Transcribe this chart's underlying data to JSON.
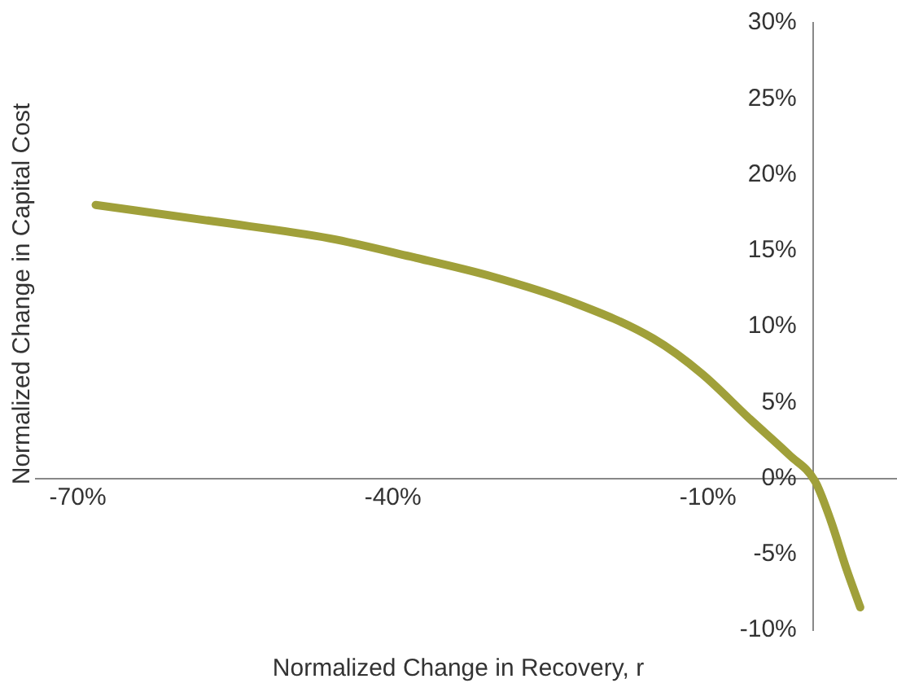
{
  "chart_data": {
    "type": "line",
    "xlabel": "Normalized Change in Recovery, r",
    "ylabel": "Normalized Change in Capital Cost",
    "xlim": [
      -74,
      8
    ],
    "ylim": [
      -10,
      30
    ],
    "xticks": [
      {
        "value": -70,
        "label": "-70%"
      },
      {
        "value": -40,
        "label": "-40%"
      },
      {
        "value": -10,
        "label": "-10%"
      }
    ],
    "yticks": [
      {
        "value": -10,
        "label": "-10%"
      },
      {
        "value": -5,
        "label": "-5%"
      },
      {
        "value": 0,
        "label": "0%"
      },
      {
        "value": 5,
        "label": "5%"
      },
      {
        "value": 10,
        "label": "10%"
      },
      {
        "value": 15,
        "label": "15%"
      },
      {
        "value": 20,
        "label": "20%"
      },
      {
        "value": 25,
        "label": "25%"
      },
      {
        "value": 30,
        "label": "30%"
      }
    ],
    "grid": false,
    "legend": false,
    "marker": "none",
    "line_style": "solid",
    "series": [
      {
        "color": "#a0a03a",
        "x": [
          -68.3,
          -56.8,
          -46,
          -38.3,
          -30.6,
          -22.9,
          -15.2,
          -10.6,
          -6,
          -2.2,
          0.2,
          1.7,
          3.2,
          4.5
        ],
        "values": [
          18,
          16.9,
          15.8,
          14.6,
          13.3,
          11.6,
          9.2,
          6.9,
          3.9,
          1.5,
          -0.2,
          -2.8,
          -6,
          -8.5
        ]
      }
    ]
  }
}
